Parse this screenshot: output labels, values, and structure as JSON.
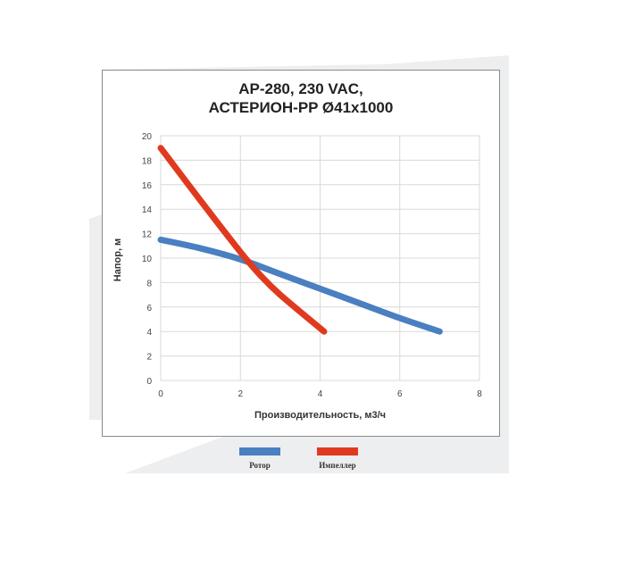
{
  "chart_data": {
    "type": "line",
    "title": [
      "AP-280, 230 VAC,",
      "АСТЕРИОН-PP  Ø41x1000"
    ],
    "xlabel": "Производительность, м3/ч",
    "ylabel": "Напор, м",
    "xlim": [
      0,
      8
    ],
    "ylim": [
      0,
      20
    ],
    "xticks": [
      0,
      2,
      4,
      6,
      8
    ],
    "yticks": [
      0,
      2,
      4,
      6,
      8,
      10,
      12,
      14,
      16,
      18,
      20
    ],
    "grid": true,
    "legend_position": "bottom",
    "series": [
      {
        "name": "Ротор",
        "color": "#4a7fc1",
        "x": [
          0,
          1,
          2,
          3,
          4,
          5,
          6,
          7
        ],
        "y": [
          11.5,
          10.8,
          9.9,
          8.7,
          7.5,
          6.3,
          5.1,
          4.0
        ]
      },
      {
        "name": "Импеллер",
        "color": "#e03a1e",
        "x": [
          0,
          1,
          2,
          2.5,
          3,
          4.1
        ],
        "y": [
          19.0,
          14.7,
          10.5,
          8.6,
          7.0,
          4.0
        ]
      }
    ]
  }
}
